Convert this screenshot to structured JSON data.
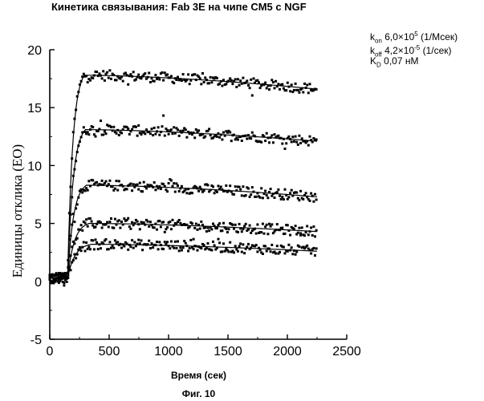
{
  "chart_data": {
    "type": "scatter",
    "title": "Кинетика связывания: Fab 3E на чипе CM5 с NGF",
    "xlabel": "Время (сек)",
    "ylabel": "Единицы отклика (ЕО)",
    "xlim": [
      0,
      2500
    ],
    "ylim": [
      -5,
      20
    ],
    "xticks": [
      "0",
      "500",
      "1000",
      "1500",
      "2000",
      "2500"
    ],
    "yticks": [
      "-5",
      "0",
      "5",
      "10",
      "15",
      "20"
    ],
    "grid": false,
    "legend": null,
    "caption": "Фиг. 10",
    "parameters": {
      "kon": {
        "label": "k",
        "sub": "on",
        "text": "6,0×10",
        "exp": "5",
        "unit": "(1/Мсек)"
      },
      "koff": {
        "label": "k",
        "sub": "off",
        "text": "4,2×10",
        "exp": "-5",
        "unit": "(1/сек)"
      },
      "KD": {
        "label": "K",
        "sub": "D",
        "text": "0,07 нМ"
      }
    },
    "series": [
      {
        "association_start": 150,
        "plateau_reached_at": 290,
        "plateau": 17.8,
        "end_value": 16.6,
        "x_end": 2250
      },
      {
        "association_start": 150,
        "plateau_reached_at": 300,
        "plateau": 13.1,
        "end_value": 12.1,
        "x_end": 2250
      },
      {
        "association_start": 150,
        "plateau_reached_at": 310,
        "plateau": 8.3,
        "end_value": 7.3,
        "x_end": 2250
      },
      {
        "association_start": 150,
        "plateau_reached_at": 330,
        "plateau": 5.0,
        "end_value": 4.3,
        "x_end": 2250
      },
      {
        "association_start": 150,
        "plateau_reached_at": 350,
        "plateau": 3.2,
        "end_value": 2.6,
        "x_end": 2250
      }
    ],
    "marker_color": "#000000",
    "fit_line_color": "#000000"
  }
}
